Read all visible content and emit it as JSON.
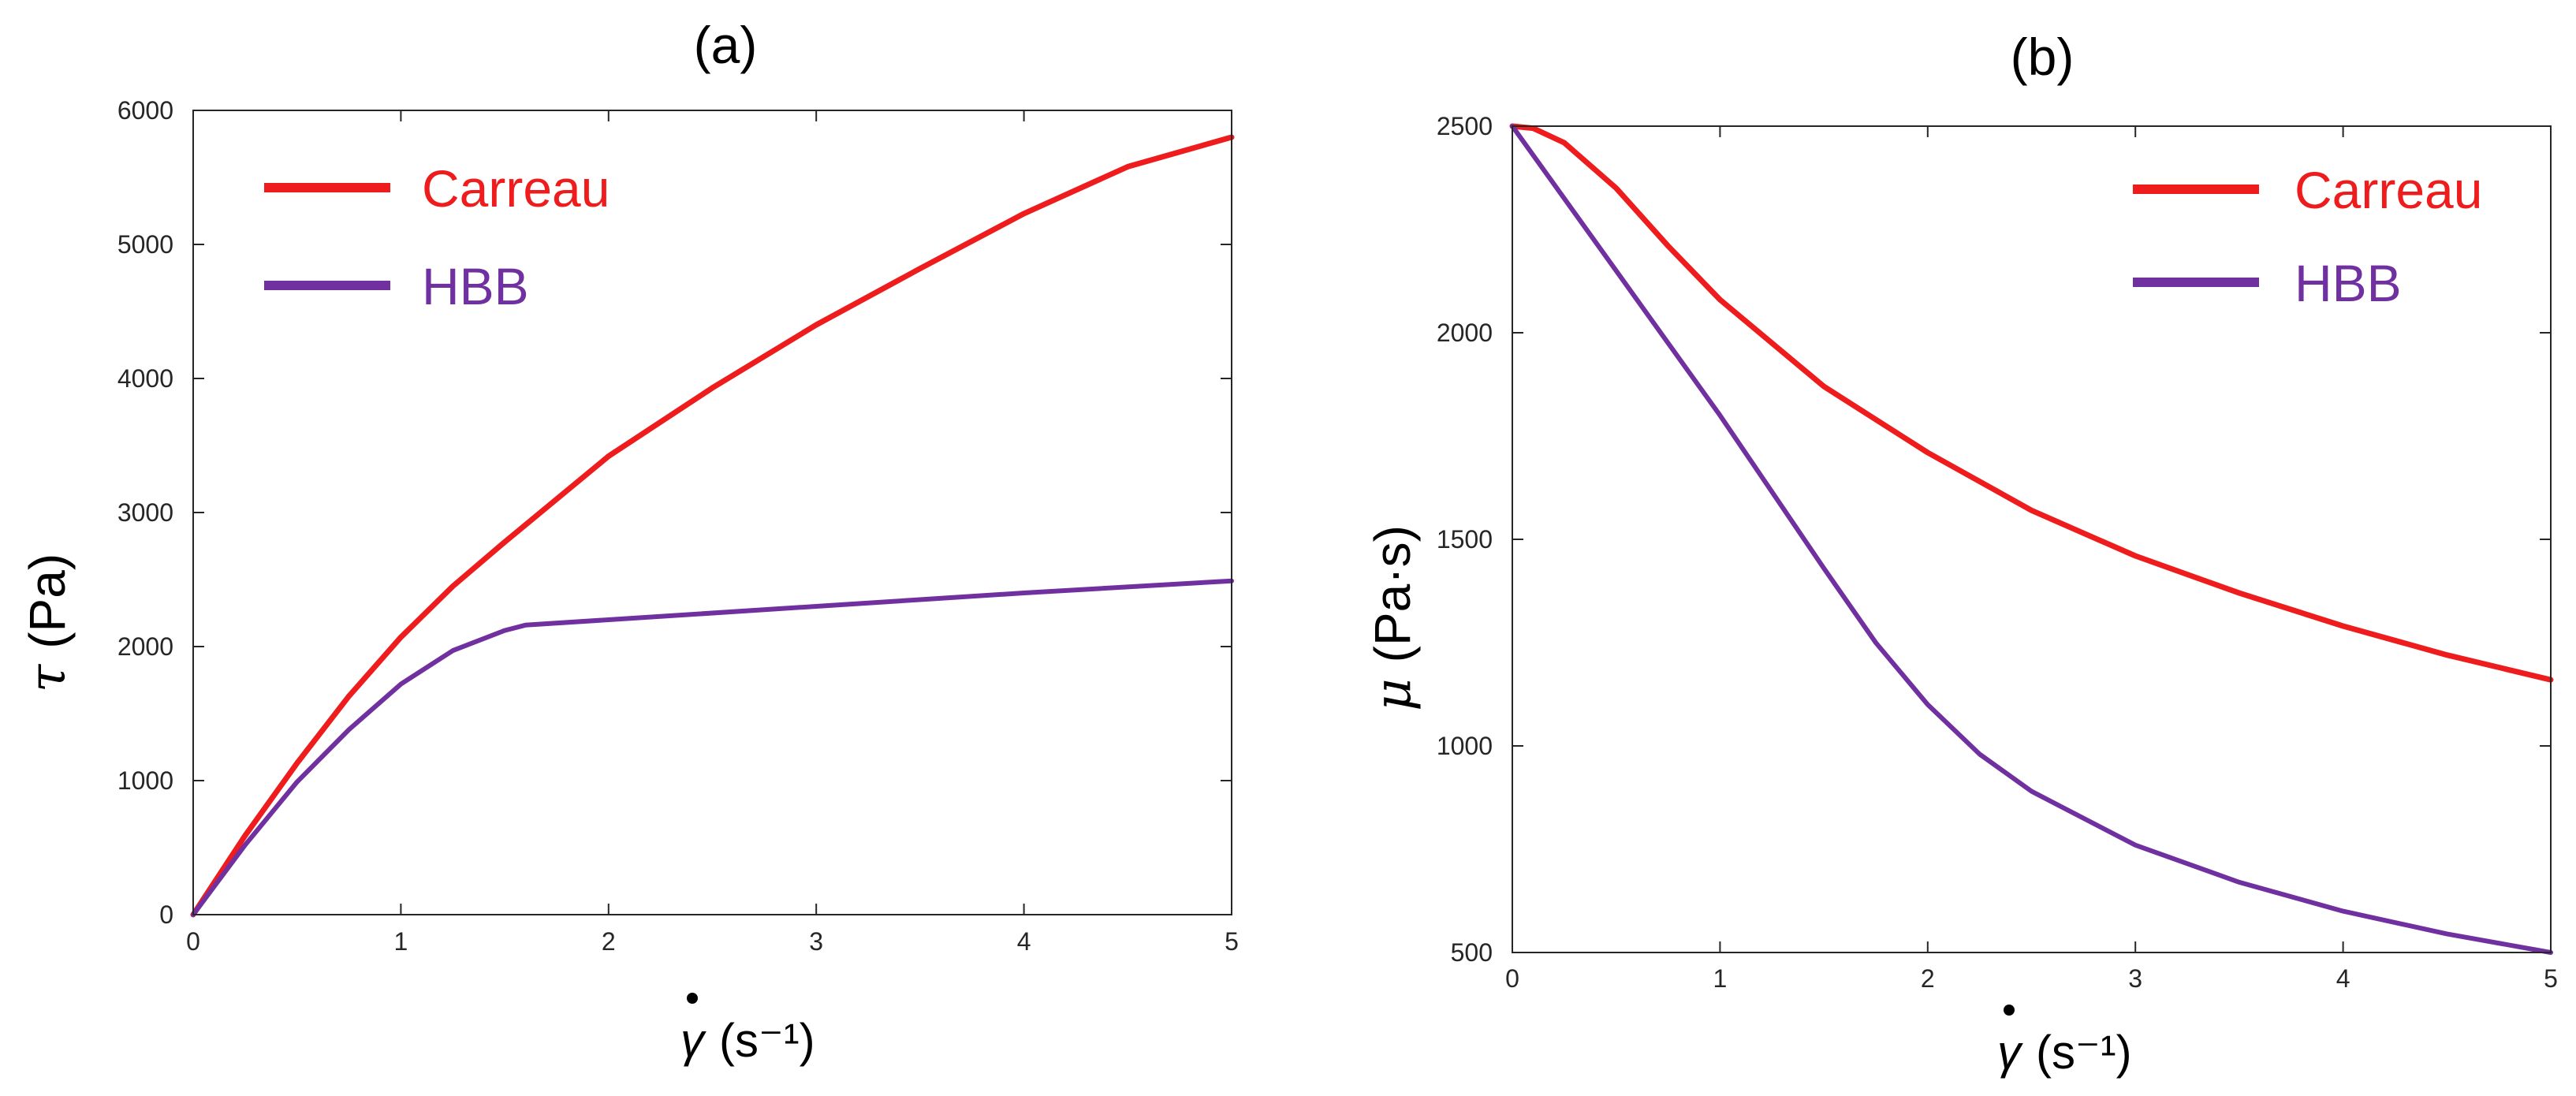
{
  "chart_data": [
    {
      "panel": "(a)",
      "type": "line",
      "title": "(a)",
      "ylabel_symbol": "τ",
      "ylabel_unit": "(Pa)",
      "xlabel_unit": "(s⁻¹)",
      "xlim": [
        0,
        5
      ],
      "ylim": [
        0,
        6000
      ],
      "xticks": [
        0,
        1,
        2,
        3,
        4,
        5
      ],
      "yticks": [
        0,
        1000,
        2000,
        3000,
        4000,
        5000,
        6000
      ],
      "legend_position": "top-left",
      "grid": false,
      "series": [
        {
          "name": "Carreau",
          "color": "#ee1c1c",
          "x": [
            0,
            0.25,
            0.5,
            0.75,
            1.0,
            1.25,
            1.5,
            2.0,
            2.5,
            3.0,
            3.5,
            4.0,
            4.5,
            5.0
          ],
          "y": [
            0,
            590,
            1130,
            1630,
            2070,
            2450,
            2780,
            3420,
            3930,
            4400,
            4820,
            5230,
            5580,
            5800
          ]
        },
        {
          "name": "HBB",
          "color": "#7030a0",
          "x": [
            0,
            0.25,
            0.5,
            0.75,
            1.0,
            1.25,
            1.5,
            1.6,
            2.0,
            3.0,
            4.0,
            5.0
          ],
          "y": [
            0,
            520,
            990,
            1380,
            1720,
            1970,
            2120,
            2160,
            2200,
            2300,
            2400,
            2490
          ]
        }
      ]
    },
    {
      "panel": "(b)",
      "type": "line",
      "title": "(b)",
      "ylabel_symbol": "μ",
      "ylabel_unit": "(Pa·s)",
      "xlabel_unit": "(s⁻¹)",
      "xlim": [
        0,
        5
      ],
      "ylim": [
        500,
        2500
      ],
      "xticks": [
        0,
        1,
        2,
        3,
        4,
        5
      ],
      "yticks": [
        500,
        1000,
        1500,
        2000,
        2500
      ],
      "legend_position": "top-right",
      "grid": false,
      "series": [
        {
          "name": "Carreau",
          "color": "#ee1c1c",
          "x": [
            0,
            0.1,
            0.25,
            0.5,
            0.75,
            1.0,
            1.5,
            2.0,
            2.5,
            3.0,
            3.5,
            4.0,
            4.5,
            5.0
          ],
          "y": [
            2500,
            2495,
            2460,
            2350,
            2210,
            2080,
            1870,
            1710,
            1570,
            1460,
            1370,
            1290,
            1220,
            1160
          ]
        },
        {
          "name": "HBB",
          "color": "#7030a0",
          "x": [
            0,
            0.5,
            1.0,
            1.5,
            1.75,
            2.0,
            2.25,
            2.5,
            3.0,
            3.5,
            4.0,
            4.5,
            5.0
          ],
          "y": [
            2500,
            2150,
            1800,
            1430,
            1250,
            1100,
            980,
            890,
            760,
            670,
            600,
            545,
            500
          ]
        }
      ]
    }
  ]
}
